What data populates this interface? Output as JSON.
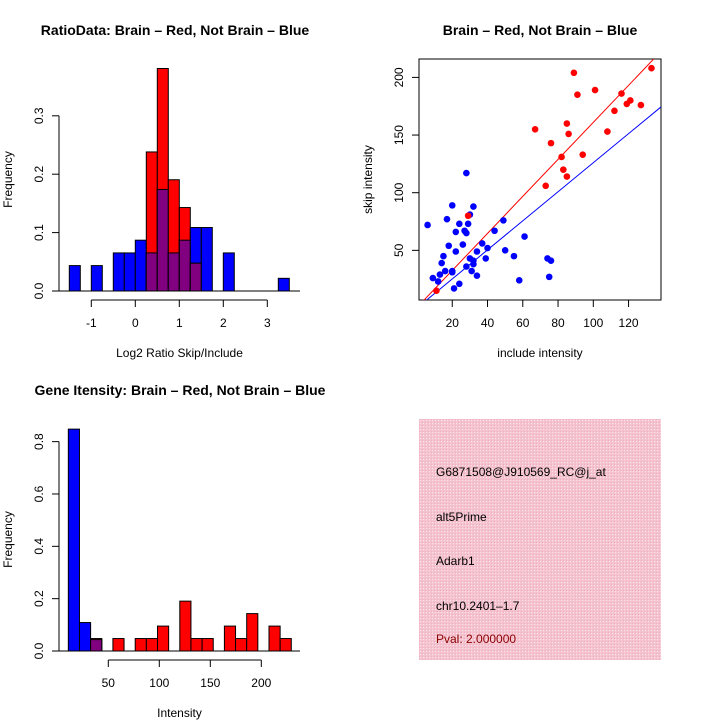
{
  "colors": {
    "red": "#ff0000",
    "blue": "#0000ff",
    "purple": "#800080",
    "pval": "#8b0000",
    "panel": "#f4c3cf"
  },
  "chart_data": [
    {
      "type": "bar",
      "title": "RatioData: Brain – Red, Not Brain – Blue",
      "xlabel": "Log2 Ratio Skip/Include",
      "ylabel": "Frequency",
      "xticks": [
        "-1",
        "0",
        "1",
        "2",
        "3"
      ],
      "xtick_values": [
        -1,
        0,
        1,
        2,
        3
      ],
      "yticks": [
        "0.0",
        "0.1",
        "0.2",
        "0.3"
      ],
      "ytick_values": [
        0,
        0.1,
        0.2,
        0.3
      ],
      "bin_start": -1.5,
      "bin_width": 0.25,
      "series": [
        {
          "name": "Not Brain",
          "color": "blue",
          "values": [
            0.0435,
            0,
            0.0435,
            0,
            0.0652,
            0.0652,
            0.087,
            0.0652,
            0.1739,
            0.0652,
            0.087,
            0.1087,
            0.1087,
            0,
            0.0652,
            0,
            0,
            0,
            0,
            0.0217
          ]
        },
        {
          "name": "Brain",
          "color": "red",
          "values": [
            0,
            0,
            0,
            0,
            0,
            0,
            0,
            0.2381,
            0.381,
            0.1905,
            0.1429,
            0.0476,
            0,
            0,
            0,
            0,
            0,
            0,
            0,
            0
          ]
        }
      ]
    },
    {
      "type": "scatter",
      "title": "Brain – Red, Not Brain – Blue",
      "xlabel": "include intensity",
      "ylabel": "skip intensity",
      "xticks": [
        "20",
        "40",
        "60",
        "80",
        "100",
        "120"
      ],
      "xtick_values": [
        20,
        40,
        60,
        80,
        100,
        120
      ],
      "yticks": [
        "50",
        "100",
        "150",
        "200"
      ],
      "ytick_values": [
        50,
        100,
        150,
        200
      ],
      "series": [
        {
          "name": "Brain",
          "color": "red",
          "line": {
            "intercept": 0.5,
            "slope": 1.605
          },
          "points": [
            [
              11,
              15
            ],
            [
              29,
              80
            ],
            [
              67,
              155
            ],
            [
              76,
              143
            ],
            [
              73,
              106
            ],
            [
              82,
              131
            ],
            [
              83,
              120
            ],
            [
              85,
              114
            ],
            [
              85,
              160
            ],
            [
              86,
              151
            ],
            [
              89,
              204
            ],
            [
              91,
              185
            ],
            [
              94,
              133
            ],
            [
              101,
              189
            ],
            [
              108,
              153
            ],
            [
              112,
              171
            ],
            [
              116,
              186
            ],
            [
              119,
              177
            ],
            [
              121,
              180
            ],
            [
              127,
              176
            ],
            [
              133,
              208
            ]
          ]
        },
        {
          "name": "Not Brain",
          "color": "blue",
          "line": {
            "intercept": 0,
            "slope": 1.26
          },
          "points": [
            [
              6,
              72
            ],
            [
              9,
              26
            ],
            [
              12,
              23
            ],
            [
              13,
              29
            ],
            [
              14,
              39
            ],
            [
              15,
              45
            ],
            [
              16,
              32
            ],
            [
              17,
              77
            ],
            [
              18,
              54
            ],
            [
              20,
              32
            ],
            [
              20,
              31
            ],
            [
              20,
              89
            ],
            [
              21,
              17
            ],
            [
              22,
              49
            ],
            [
              22,
              66
            ],
            [
              24,
              21
            ],
            [
              24,
              73
            ],
            [
              26,
              55
            ],
            [
              27,
              67
            ],
            [
              28,
              117
            ],
            [
              28,
              36
            ],
            [
              28,
              65
            ],
            [
              29,
              73
            ],
            [
              30,
              43
            ],
            [
              30,
              81
            ],
            [
              31,
              32
            ],
            [
              32,
              88
            ],
            [
              32,
              41
            ],
            [
              32,
              38
            ],
            [
              34,
              49
            ],
            [
              34,
              28
            ],
            [
              37,
              56
            ],
            [
              39,
              43
            ],
            [
              40,
              52
            ],
            [
              44,
              67
            ],
            [
              49,
              76
            ],
            [
              50,
              50
            ],
            [
              55,
              45
            ],
            [
              58,
              24
            ],
            [
              61,
              62
            ],
            [
              74,
              43
            ],
            [
              75,
              27
            ],
            [
              76,
              41
            ]
          ]
        }
      ]
    },
    {
      "type": "bar",
      "title": "Gene Itensity: Brain – Red, Not Brain – Blue",
      "xlabel": "Intensity",
      "ylabel": "Frequency",
      "xticks": [
        "50",
        "100",
        "150",
        "200"
      ],
      "xtick_values": [
        50,
        100,
        150,
        200
      ],
      "yticks": [
        "0.0",
        "0.2",
        "0.4",
        "0.6",
        "0.8"
      ],
      "ytick_values": [
        0,
        0.2,
        0.4,
        0.6,
        0.8
      ],
      "bin_start": 10.8,
      "bin_width": 10.93,
      "series": [
        {
          "name": "Not Brain",
          "color": "blue",
          "values": [
            0.8478,
            0.1087,
            0.0435,
            0,
            0,
            0,
            0,
            0,
            0,
            0,
            0,
            0,
            0,
            0,
            0,
            0,
            0,
            0,
            0,
            0
          ]
        },
        {
          "name": "Brain",
          "color": "red",
          "values": [
            0,
            0,
            0.0476,
            0,
            0.0476,
            0,
            0.0476,
            0.0476,
            0.0952,
            0,
            0.1905,
            0.0476,
            0.0476,
            0,
            0.0952,
            0.0476,
            0.1429,
            0,
            0.0952,
            0.0476
          ]
        }
      ]
    }
  ],
  "info_panel": {
    "probe_id": "G6871508@J910569_RC@j_at",
    "event_type": "alt5Prime",
    "gene": "Adarb1",
    "location": "chr10.2401–1.7",
    "pval": "Pval: 2.000000"
  }
}
